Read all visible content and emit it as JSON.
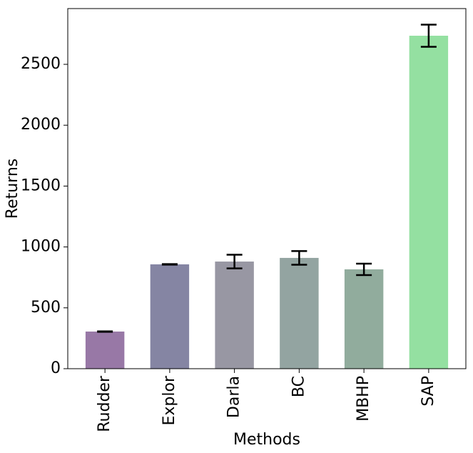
{
  "chart_data": {
    "type": "bar",
    "x_label": "Methods",
    "y_label": "Returns",
    "categories": [
      "Rudder",
      "Explor",
      "Darla",
      "BC",
      "MBHP",
      "SAP"
    ],
    "values": [
      305,
      857,
      880,
      910,
      816,
      2735
    ],
    "errors": [
      2,
      2,
      56,
      56,
      47,
      91
    ],
    "colors": [
      "#9878a6",
      "#8585a3",
      "#9897a3",
      "#93a4a1",
      "#91ac9d",
      "#94e0a1"
    ],
    "ylim": [
      0,
      2958
    ],
    "yticks": [
      0,
      500,
      1000,
      1500,
      2000,
      2500
    ],
    "grid": false
  }
}
